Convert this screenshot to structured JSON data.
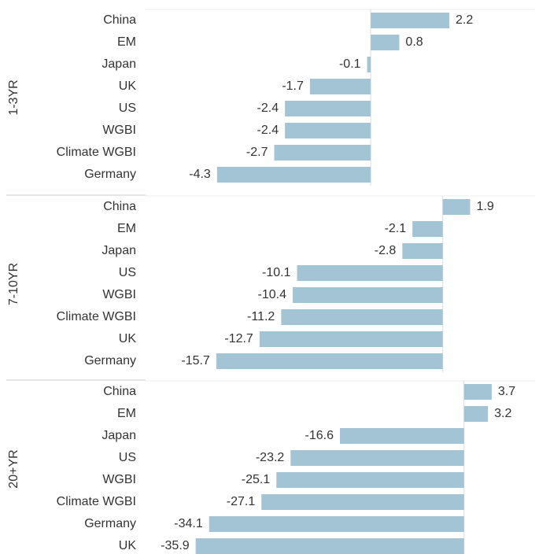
{
  "chart_data": [
    {
      "type": "bar",
      "ylabel": "1-3YR",
      "color": "#a3c4d4",
      "categories": [
        "China",
        "EM",
        "Japan",
        "UK",
        "US",
        "WGBI",
        "Climate WGBI",
        "Germany"
      ],
      "values": [
        2.2,
        0.8,
        -0.1,
        -1.7,
        -2.4,
        -2.4,
        -2.7,
        -4.3
      ],
      "xlim": [
        -6.3,
        4.6
      ]
    },
    {
      "type": "bar",
      "ylabel": "7-10YR",
      "color": "#a3c4d4",
      "categories": [
        "China",
        "EM",
        "Japan",
        "US",
        "WGBI",
        "Climate WGBI",
        "UK",
        "Germany"
      ],
      "values": [
        1.9,
        -2.1,
        -2.8,
        -10.1,
        -10.4,
        -11.2,
        -12.7,
        -15.7
      ],
      "xlim": [
        -20.6,
        6.4
      ]
    },
    {
      "type": "bar",
      "ylabel": "20+YR",
      "color": "#a3c4d4",
      "categories": [
        "China",
        "EM",
        "Japan",
        "US",
        "WGBI",
        "Climate WGBI",
        "Germany",
        "UK"
      ],
      "values": [
        3.7,
        3.2,
        -16.6,
        -23.2,
        -25.1,
        -27.1,
        -34.1,
        -35.9
      ],
      "xlim": [
        -42.6,
        9.5
      ]
    }
  ]
}
